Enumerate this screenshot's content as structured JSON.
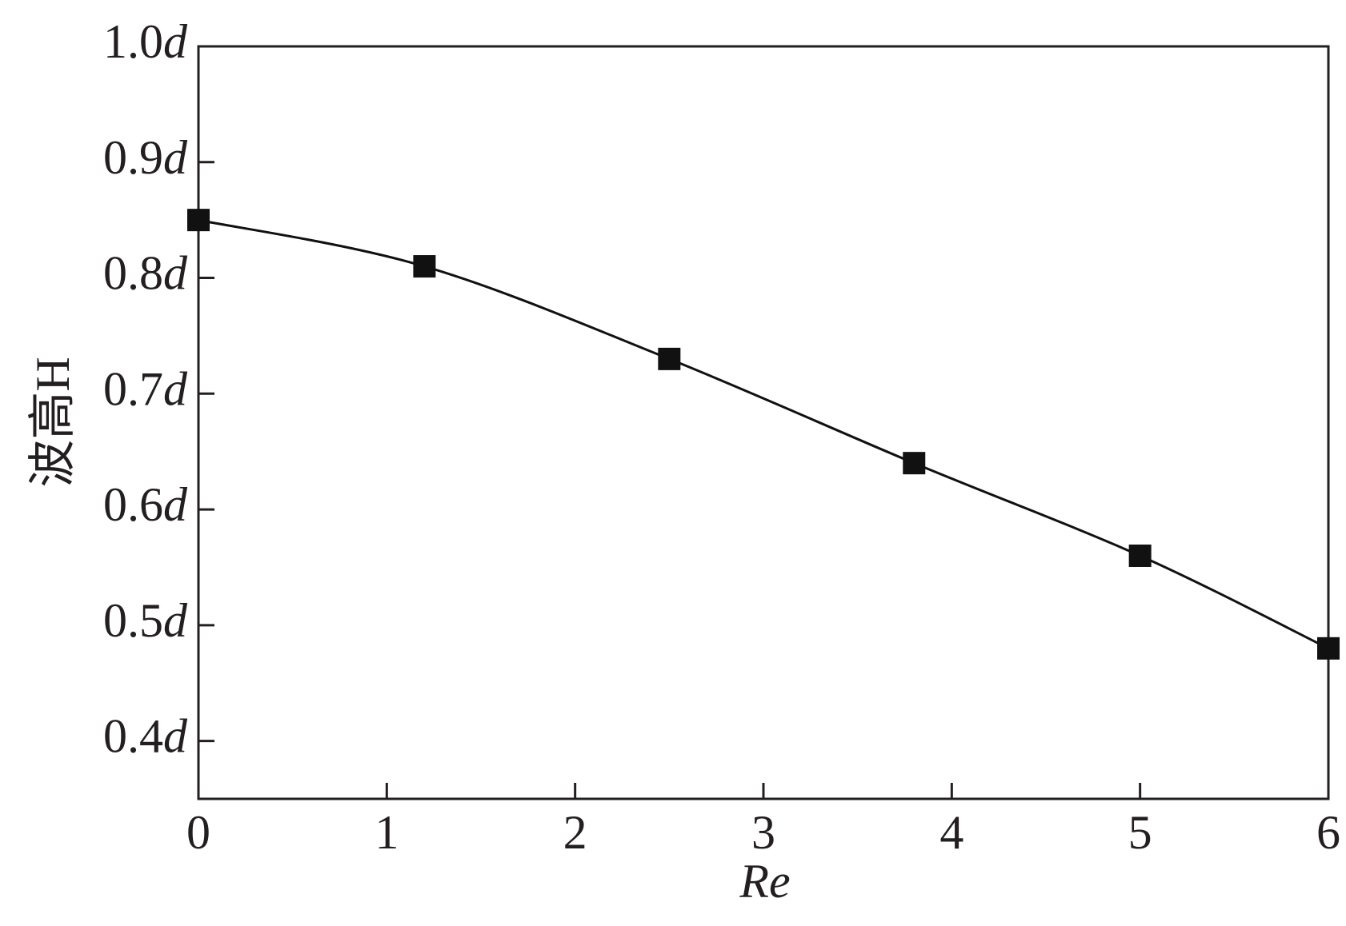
{
  "chart_data": {
    "type": "line",
    "xlabel": "Re",
    "ylabel": "波高H",
    "x": [
      0,
      1.2,
      2.5,
      3.8,
      5,
      6
    ],
    "values": [
      0.85,
      0.81,
      0.73,
      0.64,
      0.56,
      0.48
    ],
    "color": "#111111",
    "marker": "square",
    "xlim": [
      0,
      6
    ],
    "xticks": [
      0,
      1,
      2,
      3,
      4,
      5,
      6
    ],
    "ylim": [
      0.35,
      1.0
    ],
    "yticks": [
      {
        "value": 0.4,
        "label": "0.4d"
      },
      {
        "value": 0.5,
        "label": "0.5d"
      },
      {
        "value": 0.6,
        "label": "0.6d"
      },
      {
        "value": 0.7,
        "label": "0.7d"
      },
      {
        "value": 0.8,
        "label": "0.8d"
      },
      {
        "value": 0.9,
        "label": "0.9d"
      },
      {
        "value": 1.0,
        "label": "1.0d"
      }
    ],
    "grid": false
  }
}
